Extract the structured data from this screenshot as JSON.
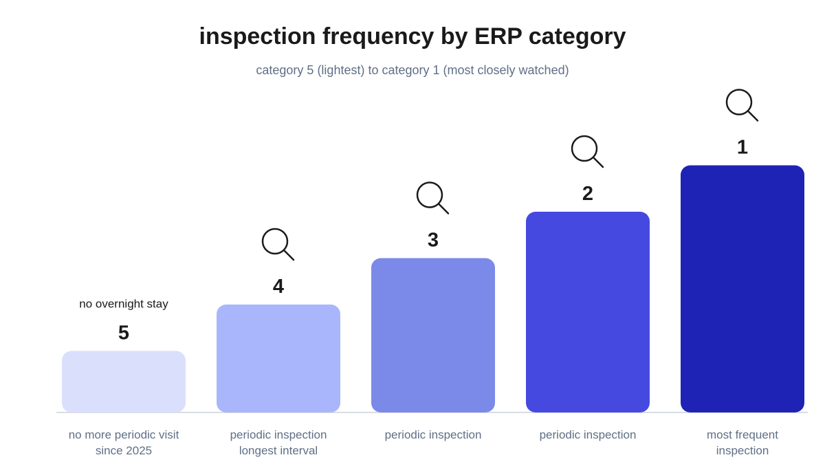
{
  "title": "inspection frequency by ERP category",
  "subtitle": "category 5 (lightest) to category 1 (most closely watched)",
  "chart_data": {
    "type": "bar",
    "title": "inspection frequency by ERP category",
    "subtitle": "category 5 (lightest) to category 1 (most closely watched)",
    "categories": [
      [
        "no more periodic visit",
        "since 2025"
      ],
      [
        "periodic inspection",
        "longest interval"
      ],
      [
        "periodic inspection"
      ],
      [
        "periodic inspection"
      ],
      [
        "most frequent",
        "inspection"
      ]
    ],
    "values": [
      1,
      2,
      3,
      4,
      5
    ],
    "bar_labels": [
      "5",
      "4",
      "3",
      "2",
      "1"
    ],
    "annotations": [
      {
        "bar_index": 0,
        "text": "no overnight stay"
      }
    ],
    "icons": [
      "none",
      "magnifier-icon",
      "magnifier-icon",
      "magnifier-icon",
      "magnifier-icon"
    ],
    "colors": [
      "#dadffc",
      "#aab6fb",
      "#7b8ae8",
      "#4549e0",
      "#1e23b5"
    ],
    "ylim": [
      0,
      5
    ],
    "grid": false,
    "legend": "none"
  }
}
